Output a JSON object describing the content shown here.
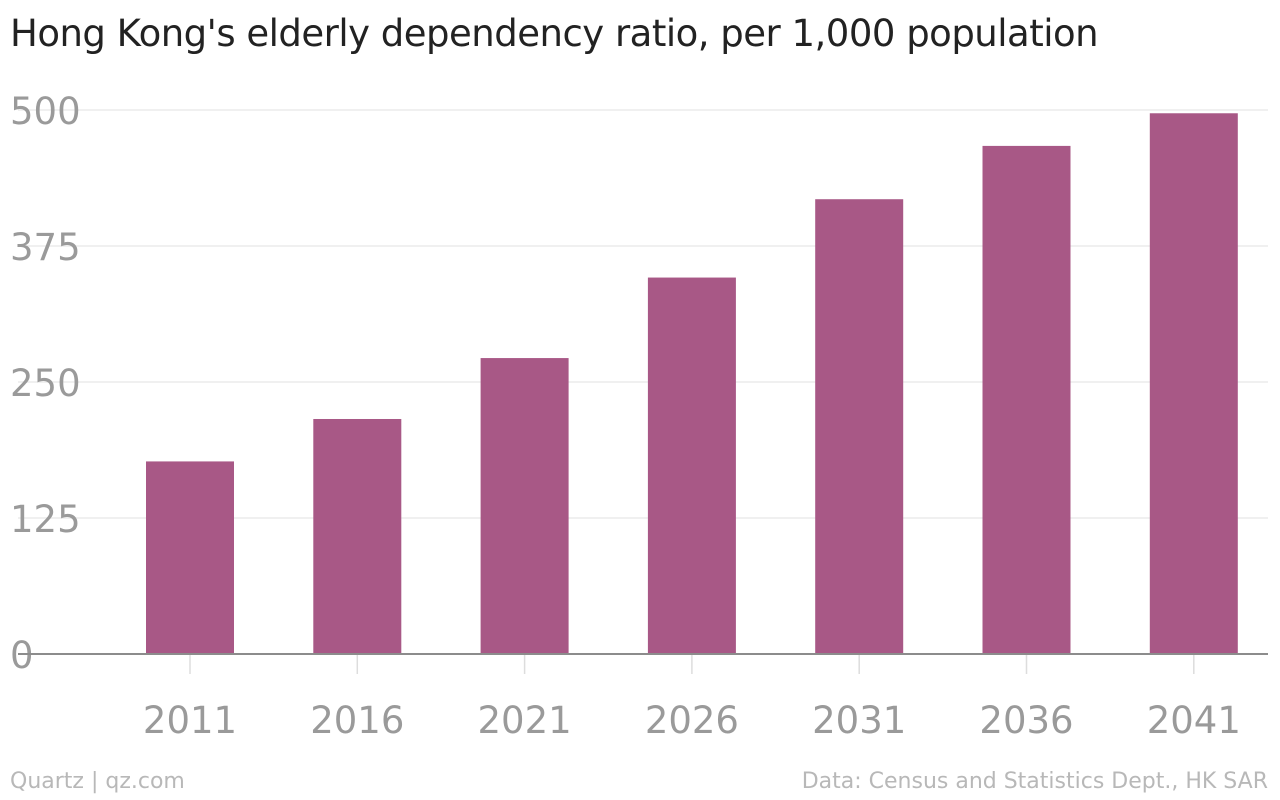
{
  "chart_data": {
    "type": "bar",
    "title": "Hong Kong's elderly dependency ratio, per 1,000 population",
    "categories": [
      "2011",
      "2016",
      "2021",
      "2026",
      "2031",
      "2036",
      "2041"
    ],
    "values": [
      177,
      216,
      272,
      346,
      418,
      467,
      497
    ],
    "ylim": [
      0,
      500
    ],
    "yticks": [
      "0",
      "125",
      "250",
      "375",
      "500"
    ],
    "xlabel": "",
    "ylabel": "",
    "grid": true,
    "bar_color": "#a85886"
  },
  "footer": {
    "credit": "Quartz | qz.com",
    "source": "Data: Census and Statistics Dept., HK SAR"
  }
}
